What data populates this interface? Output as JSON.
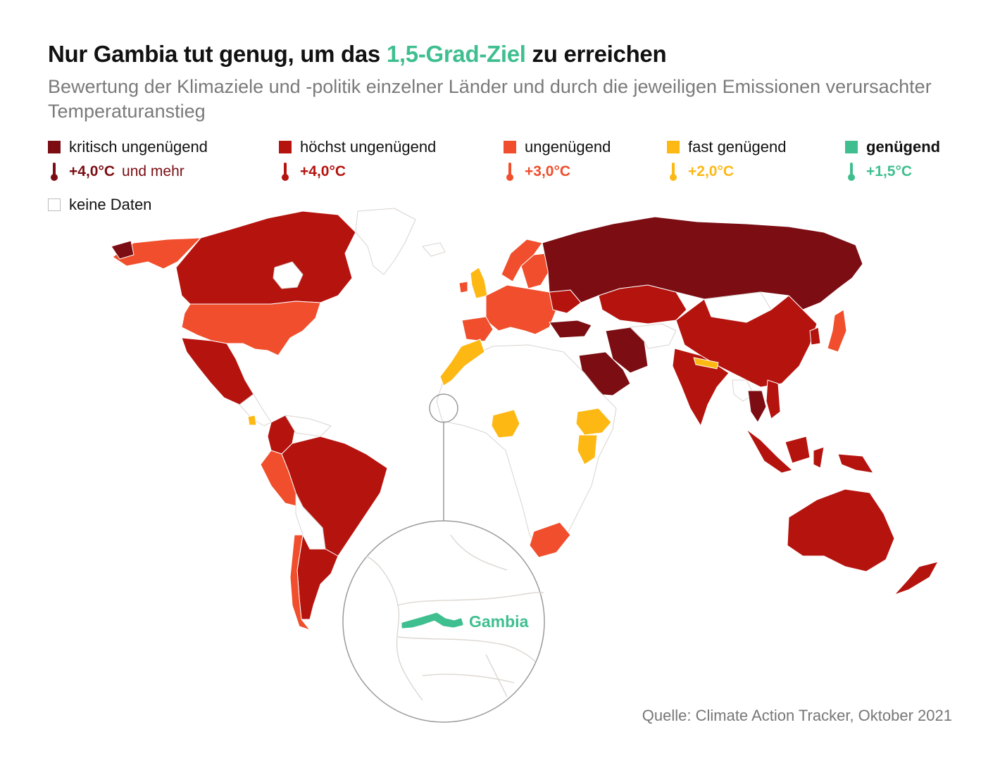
{
  "title": {
    "before": "Nur Gambia tut genug, um das ",
    "highlight": "1,5-Grad-Ziel",
    "after": " zu erreichen"
  },
  "subtitle": "Bewertung der Klimaziele und -politik einzelner Länder und durch die jeweiligen Emissionen verursachter Temperaturanstieg",
  "legend": [
    {
      "label": "kritisch ungenügend",
      "temp": "+4,0°C",
      "extra": "und mehr",
      "color": "#7b0d13"
    },
    {
      "label": "höchst ungenügend",
      "temp": "+4,0°C",
      "extra": "",
      "color": "#b5130e"
    },
    {
      "label": "ungenügend",
      "temp": "+3,0°C",
      "extra": "",
      "color": "#f04e2c"
    },
    {
      "label": "fast genügend",
      "temp": "+2,0°C",
      "extra": "",
      "color": "#fdb813"
    },
    {
      "label": "genügend",
      "temp": "+1,5°C",
      "extra": "",
      "color": "#3fbf8f"
    }
  ],
  "nodata_label": "keine Daten",
  "inset_label": "Gambia",
  "source": "Quelle: Climate Action Tracker, Oktober 2021",
  "colors": {
    "kritisch": "#7b0d13",
    "hoechst": "#b5130e",
    "ungenuegend": "#f04e2c",
    "fast": "#fdb813",
    "genuegend": "#3fbf8f",
    "nodata": "#ffffff",
    "border": "#d9d4d0"
  }
}
